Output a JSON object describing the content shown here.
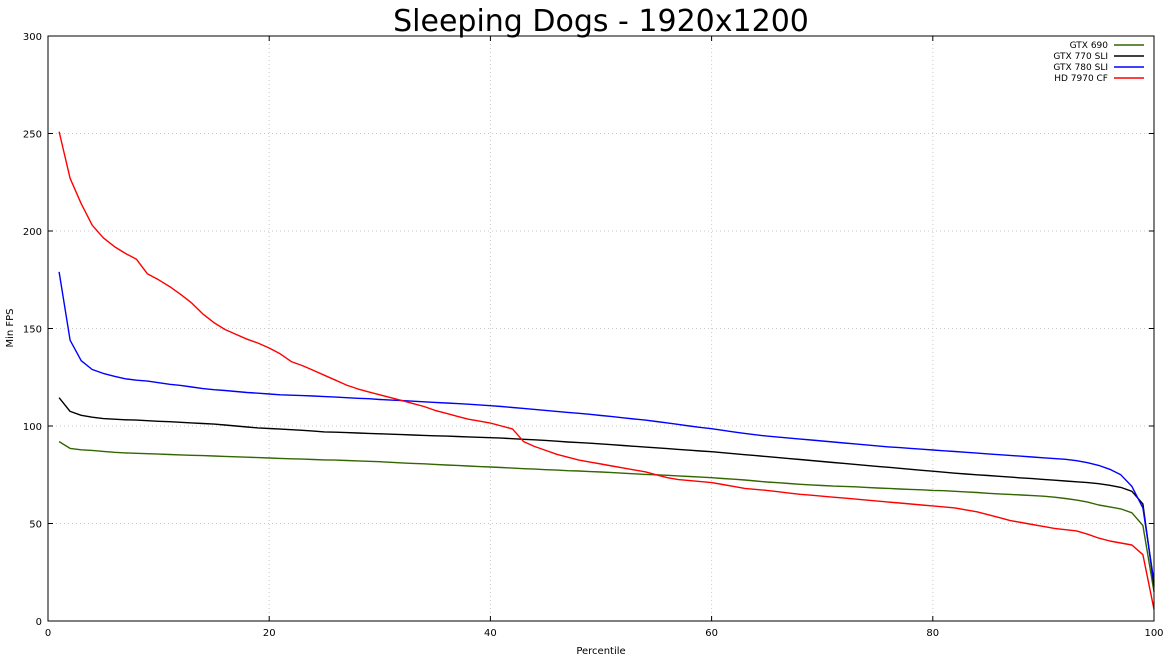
{
  "chart_data": {
    "type": "line",
    "title": "Sleeping Dogs - 1920x1200",
    "xlabel": "Percentile",
    "ylabel": "Min FPS",
    "xlim": [
      0,
      100
    ],
    "ylim": [
      0,
      300
    ],
    "xticks": [
      0,
      20,
      40,
      60,
      80,
      100
    ],
    "yticks": [
      0,
      50,
      100,
      150,
      200,
      250,
      300
    ],
    "grid": true,
    "legend_position": "top-right",
    "x": [
      1,
      2,
      3,
      4,
      5,
      6,
      7,
      8,
      9,
      10,
      11,
      12,
      13,
      14,
      15,
      16,
      17,
      18,
      19,
      20,
      21,
      22,
      23,
      24,
      25,
      26,
      27,
      28,
      29,
      30,
      31,
      32,
      33,
      34,
      35,
      36,
      37,
      38,
      39,
      40,
      41,
      42,
      43,
      44,
      45,
      46,
      47,
      48,
      49,
      50,
      51,
      52,
      53,
      54,
      55,
      56,
      57,
      58,
      59,
      60,
      61,
      62,
      63,
      64,
      65,
      66,
      67,
      68,
      69,
      70,
      71,
      72,
      73,
      74,
      75,
      76,
      77,
      78,
      79,
      80,
      81,
      82,
      83,
      84,
      85,
      86,
      87,
      88,
      89,
      90,
      91,
      92,
      93,
      94,
      95,
      96,
      97,
      98,
      99,
      100
    ],
    "series": [
      {
        "name": "GTX 690",
        "color": "#336600",
        "values": [
          92,
          88.5,
          87.8,
          87.5,
          87,
          86.5,
          86.2,
          86,
          85.8,
          85.6,
          85.4,
          85.2,
          85,
          84.8,
          84.6,
          84.4,
          84.2,
          84,
          83.8,
          83.6,
          83.4,
          83.2,
          83,
          82.8,
          82.6,
          82.5,
          82.3,
          82.1,
          81.9,
          81.7,
          81.4,
          81.1,
          80.8,
          80.6,
          80.3,
          80,
          79.8,
          79.5,
          79.2,
          79,
          78.7,
          78.4,
          78.1,
          77.9,
          77.6,
          77.4,
          77.1,
          76.9,
          76.6,
          76.4,
          76.1,
          75.8,
          75.5,
          75.2,
          75,
          74.7,
          74.4,
          74.1,
          73.8,
          73.5,
          73.1,
          72.7,
          72.3,
          71.8,
          71.3,
          70.9,
          70.5,
          70.1,
          69.8,
          69.5,
          69.2,
          69,
          68.8,
          68.5,
          68.2,
          68,
          67.7,
          67.5,
          67.3,
          67,
          66.8,
          66.5,
          66.2,
          65.9,
          65.5,
          65.2,
          64.9,
          64.6,
          64.3,
          64,
          63.5,
          62.8,
          62,
          61,
          59.5,
          58.5,
          57.5,
          55.5,
          49,
          15
        ]
      },
      {
        "name": "GTX 770 SLI",
        "color": "#000000",
        "values": [
          114.5,
          107.5,
          105.5,
          104.5,
          103.8,
          103.5,
          103.2,
          103,
          102.7,
          102.4,
          102.2,
          101.9,
          101.6,
          101.3,
          101,
          100.5,
          100,
          99.5,
          99,
          98.7,
          98.4,
          98.1,
          97.8,
          97.4,
          97,
          96.8,
          96.6,
          96.4,
          96.2,
          96,
          95.8,
          95.6,
          95.4,
          95.2,
          95,
          94.8,
          94.6,
          94.4,
          94.2,
          94,
          93.8,
          93.5,
          93.2,
          92.9,
          92.6,
          92.2,
          91.8,
          91.5,
          91.2,
          90.8,
          90.4,
          90,
          89.6,
          89.2,
          88.8,
          88.4,
          88,
          87.6,
          87.2,
          86.8,
          86.3,
          85.8,
          85.3,
          84.8,
          84.3,
          83.8,
          83.3,
          82.8,
          82.3,
          81.8,
          81.3,
          80.8,
          80.3,
          79.8,
          79.3,
          78.8,
          78.3,
          77.8,
          77.3,
          76.8,
          76.3,
          75.8,
          75.4,
          75,
          74.6,
          74.2,
          73.8,
          73.4,
          73,
          72.6,
          72.2,
          71.8,
          71.4,
          71,
          70.4,
          69.6,
          68.5,
          66.5,
          60,
          18
        ]
      },
      {
        "name": "GTX 780 SLI",
        "color": "#0000ff",
        "values": [
          179,
          144,
          133.5,
          129,
          127,
          125.5,
          124.2,
          123.5,
          123,
          122.2,
          121.4,
          120.8,
          120,
          119.2,
          118.6,
          118.2,
          117.7,
          117.2,
          116.8,
          116.4,
          116,
          115.8,
          115.6,
          115.4,
          115.1,
          114.8,
          114.5,
          114.2,
          114,
          113.6,
          113.3,
          113,
          112.7,
          112.4,
          112.1,
          111.8,
          111.5,
          111.2,
          110.8,
          110.4,
          110,
          109.5,
          109,
          108.5,
          108,
          107.5,
          107,
          106.5,
          106,
          105.4,
          104.8,
          104.2,
          103.6,
          103,
          102.3,
          101.6,
          100.8,
          100,
          99.3,
          98.6,
          97.8,
          97,
          96.2,
          95.5,
          94.8,
          94.3,
          93.8,
          93.3,
          92.8,
          92.3,
          91.8,
          91.3,
          90.8,
          90.3,
          89.8,
          89.3,
          88.9,
          88.5,
          88.1,
          87.7,
          87.3,
          86.9,
          86.5,
          86.1,
          85.7,
          85.3,
          84.9,
          84.5,
          84.1,
          83.7,
          83.3,
          82.9,
          82.2,
          81.2,
          79.8,
          77.8,
          75,
          69,
          58,
          20
        ]
      },
      {
        "name": "HD 7970 CF",
        "color": "#ff0000",
        "values": [
          251,
          227,
          214,
          203,
          196.5,
          192,
          188.5,
          185.5,
          178,
          175,
          171.5,
          167.5,
          163,
          157.5,
          153,
          149.5,
          147,
          144.5,
          142.5,
          140,
          137,
          133,
          131,
          128.5,
          126,
          123.5,
          121,
          119,
          117.5,
          116,
          114.5,
          113,
          111.5,
          110,
          108,
          106.5,
          105,
          103.5,
          102.5,
          101.5,
          100,
          98.5,
          92,
          89.5,
          87.5,
          85.5,
          84,
          82.5,
          81.5,
          80.5,
          79.5,
          78.5,
          77.5,
          76.5,
          75,
          73.5,
          72.5,
          72,
          71.5,
          71,
          70,
          69,
          68,
          67.5,
          67,
          66.3,
          65.6,
          65,
          64.5,
          64,
          63.5,
          63,
          62.5,
          62,
          61.5,
          61,
          60.5,
          60,
          59.5,
          59,
          58.5,
          58,
          57,
          56,
          54.5,
          53,
          51.5,
          50.5,
          49.5,
          48.5,
          47.5,
          46.8,
          46.2,
          44.5,
          42.5,
          41,
          40,
          39,
          34,
          6
        ]
      }
    ]
  }
}
